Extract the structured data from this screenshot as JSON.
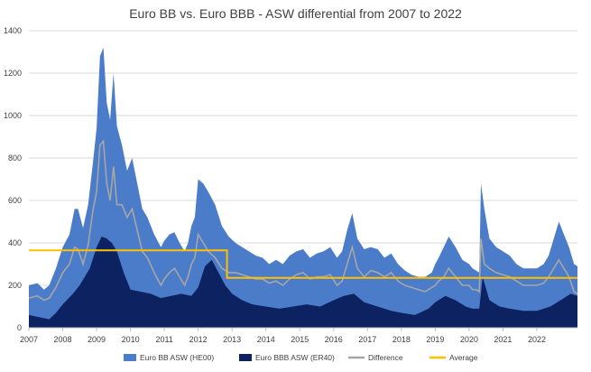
{
  "chart_data": {
    "type": "area",
    "title": "Euro BB vs. Euro BBB - ASW differential from 2007 to 2022",
    "xlabel": "",
    "ylabel": "",
    "xlim": [
      2007.0,
      2023.2
    ],
    "ylim": [
      0,
      1400
    ],
    "yticks": [
      0,
      200,
      400,
      600,
      800,
      1000,
      1200,
      1400
    ],
    "xticks": [
      "2007",
      "2008",
      "2009",
      "2010",
      "2011",
      "2012",
      "2013",
      "2014",
      "2015",
      "2016",
      "2017",
      "2018",
      "2019",
      "2020",
      "2021",
      "2022"
    ],
    "grid": "horizontal",
    "legend_position": "bottom",
    "series": [
      {
        "name": "Euro BB ASW (HE00)",
        "kind": "area",
        "color": "#4a7cc9",
        "x": [
          2007.0,
          2007.25,
          2007.45,
          2007.6,
          2007.8,
          2008.0,
          2008.2,
          2008.35,
          2008.45,
          2008.6,
          2008.75,
          2008.9,
          2009.0,
          2009.1,
          2009.2,
          2009.3,
          2009.4,
          2009.5,
          2009.6,
          2009.75,
          2009.9,
          2010.05,
          2010.2,
          2010.35,
          2010.5,
          2010.7,
          2010.9,
          2011.0,
          2011.15,
          2011.3,
          2011.45,
          2011.6,
          2011.7,
          2011.8,
          2011.9,
          2012.0,
          2012.15,
          2012.3,
          2012.5,
          2012.7,
          2012.9,
          2013.1,
          2013.3,
          2013.5,
          2013.7,
          2013.9,
          2014.1,
          2014.3,
          2014.5,
          2014.7,
          2014.9,
          2015.1,
          2015.3,
          2015.5,
          2015.7,
          2015.9,
          2016.1,
          2016.25,
          2016.4,
          2016.55,
          2016.7,
          2016.9,
          2017.1,
          2017.3,
          2017.5,
          2017.7,
          2017.9,
          2018.1,
          2018.3,
          2018.5,
          2018.7,
          2018.9,
          2019.0,
          2019.1,
          2019.25,
          2019.4,
          2019.6,
          2019.8,
          2020.0,
          2020.1,
          2020.2,
          2020.3,
          2020.35,
          2020.45,
          2020.6,
          2020.8,
          2021.0,
          2021.2,
          2021.4,
          2021.6,
          2021.8,
          2022.0,
          2022.2,
          2022.35,
          2022.5,
          2022.65,
          2022.8,
          2022.95,
          2023.1,
          2023.2
        ],
        "y": [
          200,
          210,
          180,
          200,
          280,
          380,
          440,
          560,
          560,
          470,
          580,
          790,
          940,
          1280,
          1320,
          1060,
          980,
          1200,
          950,
          860,
          740,
          800,
          680,
          560,
          520,
          440,
          380,
          410,
          440,
          450,
          400,
          360,
          400,
          480,
          520,
          700,
          680,
          640,
          580,
          480,
          430,
          400,
          380,
          360,
          340,
          330,
          300,
          320,
          300,
          340,
          360,
          370,
          330,
          350,
          360,
          380,
          330,
          360,
          460,
          540,
          420,
          370,
          380,
          370,
          330,
          350,
          300,
          270,
          250,
          240,
          240,
          260,
          300,
          330,
          380,
          430,
          380,
          320,
          300,
          280,
          270,
          260,
          680,
          560,
          420,
          380,
          360,
          340,
          300,
          280,
          280,
          280,
          300,
          340,
          420,
          500,
          440,
          380,
          300,
          290
        ]
      },
      {
        "name": "Euro BBB ASW (ER40)",
        "kind": "area",
        "color": "#0d2260",
        "x": [
          2007.0,
          2007.3,
          2007.6,
          2007.8,
          2008.0,
          2008.3,
          2008.5,
          2008.8,
          2009.0,
          2009.15,
          2009.3,
          2009.45,
          2009.6,
          2009.8,
          2010.0,
          2010.3,
          2010.6,
          2010.9,
          2011.2,
          2011.5,
          2011.8,
          2012.0,
          2012.2,
          2012.4,
          2012.6,
          2012.8,
          2013.0,
          2013.3,
          2013.6,
          2014.0,
          2014.4,
          2014.8,
          2015.2,
          2015.6,
          2016.0,
          2016.3,
          2016.6,
          2016.9,
          2017.3,
          2017.7,
          2018.0,
          2018.4,
          2018.8,
          2019.0,
          2019.3,
          2019.6,
          2019.9,
          2020.1,
          2020.3,
          2020.4,
          2020.6,
          2020.9,
          2021.2,
          2021.6,
          2022.0,
          2022.4,
          2022.7,
          2023.0,
          2023.2
        ],
        "y": [
          60,
          50,
          40,
          70,
          110,
          160,
          200,
          280,
          380,
          430,
          420,
          400,
          360,
          260,
          180,
          170,
          160,
          140,
          150,
          160,
          150,
          190,
          290,
          320,
          260,
          200,
          160,
          130,
          110,
          100,
          90,
          100,
          110,
          100,
          130,
          150,
          160,
          120,
          100,
          80,
          70,
          60,
          90,
          120,
          150,
          130,
          100,
          90,
          90,
          240,
          130,
          100,
          90,
          80,
          80,
          100,
          130,
          160,
          150
        ]
      },
      {
        "name": "Difference",
        "kind": "line",
        "color": "#a6a6a6",
        "x": [
          2007.0,
          2007.25,
          2007.45,
          2007.6,
          2007.8,
          2008.0,
          2008.2,
          2008.35,
          2008.45,
          2008.6,
          2008.75,
          2008.9,
          2009.0,
          2009.1,
          2009.2,
          2009.3,
          2009.4,
          2009.5,
          2009.6,
          2009.75,
          2009.9,
          2010.05,
          2010.2,
          2010.35,
          2010.5,
          2010.7,
          2010.9,
          2011.0,
          2011.15,
          2011.3,
          2011.45,
          2011.6,
          2011.7,
          2011.8,
          2011.9,
          2012.0,
          2012.15,
          2012.3,
          2012.5,
          2012.7,
          2012.9,
          2013.1,
          2013.3,
          2013.5,
          2013.7,
          2013.9,
          2014.1,
          2014.3,
          2014.5,
          2014.7,
          2014.9,
          2015.1,
          2015.3,
          2015.5,
          2015.7,
          2015.9,
          2016.1,
          2016.25,
          2016.4,
          2016.55,
          2016.7,
          2016.9,
          2017.1,
          2017.3,
          2017.5,
          2017.7,
          2017.9,
          2018.1,
          2018.3,
          2018.5,
          2018.7,
          2018.9,
          2019.0,
          2019.1,
          2019.25,
          2019.4,
          2019.6,
          2019.8,
          2020.0,
          2020.1,
          2020.2,
          2020.3,
          2020.35,
          2020.45,
          2020.6,
          2020.8,
          2021.0,
          2021.2,
          2021.4,
          2021.6,
          2021.8,
          2022.0,
          2022.2,
          2022.35,
          2022.5,
          2022.65,
          2022.8,
          2022.95,
          2023.1,
          2023.2
        ],
        "y": [
          140,
          150,
          130,
          140,
          190,
          260,
          300,
          380,
          370,
          300,
          390,
          560,
          640,
          860,
          880,
          680,
          600,
          760,
          580,
          580,
          520,
          560,
          460,
          360,
          330,
          260,
          200,
          230,
          260,
          280,
          240,
          200,
          240,
          300,
          330,
          440,
          400,
          360,
          330,
          280,
          260,
          260,
          250,
          240,
          230,
          230,
          210,
          220,
          200,
          230,
          250,
          260,
          230,
          240,
          240,
          250,
          200,
          220,
          300,
          380,
          280,
          240,
          270,
          260,
          240,
          260,
          220,
          200,
          190,
          180,
          170,
          190,
          200,
          220,
          240,
          280,
          240,
          200,
          200,
          180,
          180,
          170,
          420,
          300,
          280,
          260,
          250,
          240,
          220,
          200,
          200,
          200,
          210,
          240,
          280,
          320,
          280,
          240,
          170,
          160
        ]
      },
      {
        "name": "Average",
        "kind": "line",
        "color": "#ffc000",
        "x": [
          2007.0,
          2012.85,
          2012.85,
          2023.2
        ],
        "y": [
          365,
          365,
          235,
          235
        ]
      }
    ]
  }
}
